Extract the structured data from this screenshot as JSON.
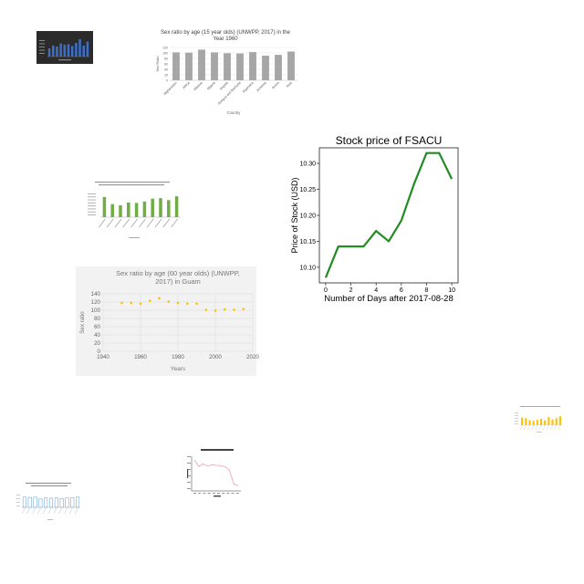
{
  "chart_data": [
    {
      "id": "dark-thumb",
      "type": "bar",
      "title": "",
      "values": [
        45,
        60,
        55,
        72,
        65,
        68,
        58,
        75,
        95,
        60,
        82
      ],
      "ylim": [
        0,
        100
      ],
      "colors": {
        "background": "#2b2b2b",
        "bar": "#3d6fc6"
      }
    },
    {
      "id": "sex-ratio-15-1960",
      "type": "bar",
      "title": "Sex ratio by age (15 year olds) (UNWPP, 2017) in the Year 1960",
      "xlabel": "Country",
      "ylabel": "Sex Ratio",
      "categories": [
        "Afghanistan",
        "Africa",
        "Albania",
        "Algeria",
        "Angola",
        "Antigua and Barbuda",
        "Argentina",
        "Armenia",
        "Aruba",
        "Asia"
      ],
      "values": [
        102,
        101,
        112,
        102,
        99,
        98,
        103,
        90,
        93,
        105
      ],
      "ylim": [
        0,
        120
      ],
      "yticks": [
        0,
        20,
        40,
        60,
        80,
        100,
        120
      ],
      "grid": true,
      "colors": {
        "bar": "#a6a6a6"
      }
    },
    {
      "id": "stock-fsacu",
      "type": "line",
      "title": "Stock price of FSACU",
      "xlabel": "Number of Days after 2017-08-28",
      "ylabel": "Price of Stock (USD)",
      "x": [
        0,
        1,
        2,
        3,
        4,
        5,
        6,
        7,
        8,
        9,
        10
      ],
      "y": [
        10.08,
        10.14,
        10.14,
        10.14,
        10.17,
        10.15,
        10.19,
        10.26,
        10.32,
        10.32,
        10.27
      ],
      "xlim": [
        -0.5,
        10.5
      ],
      "ylim": [
        10.07,
        10.33
      ],
      "xticks": [
        0,
        2,
        4,
        6,
        8,
        10
      ],
      "yticks": [
        "10.10",
        "10.15",
        "10.20",
        "10.25",
        "10.30"
      ],
      "grid": false,
      "colors": {
        "line": "#228b22"
      }
    },
    {
      "id": "green-population",
      "type": "bar",
      "title": "",
      "values": [
        0.85,
        0.55,
        0.5,
        0.62,
        0.6,
        0.66,
        0.78,
        0.8,
        0.72,
        0.88
      ],
      "ylim": [
        0,
        1
      ],
      "colors": {
        "bar": "#70ad47"
      }
    },
    {
      "id": "sex-ratio-60-guam",
      "type": "scatter",
      "title": "Sex ratio by age (60 year olds) (UNWPP, 2017) in Guam",
      "xlabel": "Years",
      "ylabel": "Sex ratio",
      "x": [
        1950,
        1955,
        1960,
        1965,
        1970,
        1975,
        1980,
        1985,
        1990,
        1995,
        2000,
        2005,
        2010,
        2015
      ],
      "y": [
        118,
        118,
        116,
        123,
        129,
        121,
        118,
        116,
        116,
        101,
        99,
        102,
        101,
        103
      ],
      "xlim": [
        1940,
        2020
      ],
      "ylim": [
        0,
        140
      ],
      "xticks": [
        1940,
        1960,
        1980,
        2000,
        2020
      ],
      "yticks": [
        0,
        20,
        40,
        60,
        80,
        100,
        120,
        140
      ],
      "grid": true,
      "colors": {
        "background": "#f2f2f2",
        "point": "#ffc000"
      }
    },
    {
      "id": "yellow-thumb",
      "type": "bar",
      "title": "",
      "values": [
        0.6,
        0.55,
        0.4,
        0.35,
        0.42,
        0.5,
        0.38,
        0.65,
        0.45,
        0.55,
        0.7
      ],
      "ylim": [
        0,
        1
      ],
      "colors": {
        "bar": "#ffc000"
      }
    },
    {
      "id": "pink-line-thumb",
      "type": "line",
      "title": "",
      "values": [
        0.9,
        0.7,
        0.78,
        0.72,
        0.75,
        0.74,
        0.72,
        0.7,
        0.6,
        0.2,
        0.15
      ],
      "ylim": [
        0,
        1
      ],
      "colors": {
        "line": "#e8a0b0"
      }
    },
    {
      "id": "sex-ratio-thumb",
      "type": "bar",
      "title": "",
      "values": [
        0.8,
        0.78,
        0.8,
        0.65,
        0.75,
        0.72,
        0.74,
        0.7,
        0.73,
        0.75,
        0.8
      ],
      "ylim": [
        0,
        1
      ],
      "colors": {
        "bar": "#5b9bd5"
      }
    }
  ]
}
